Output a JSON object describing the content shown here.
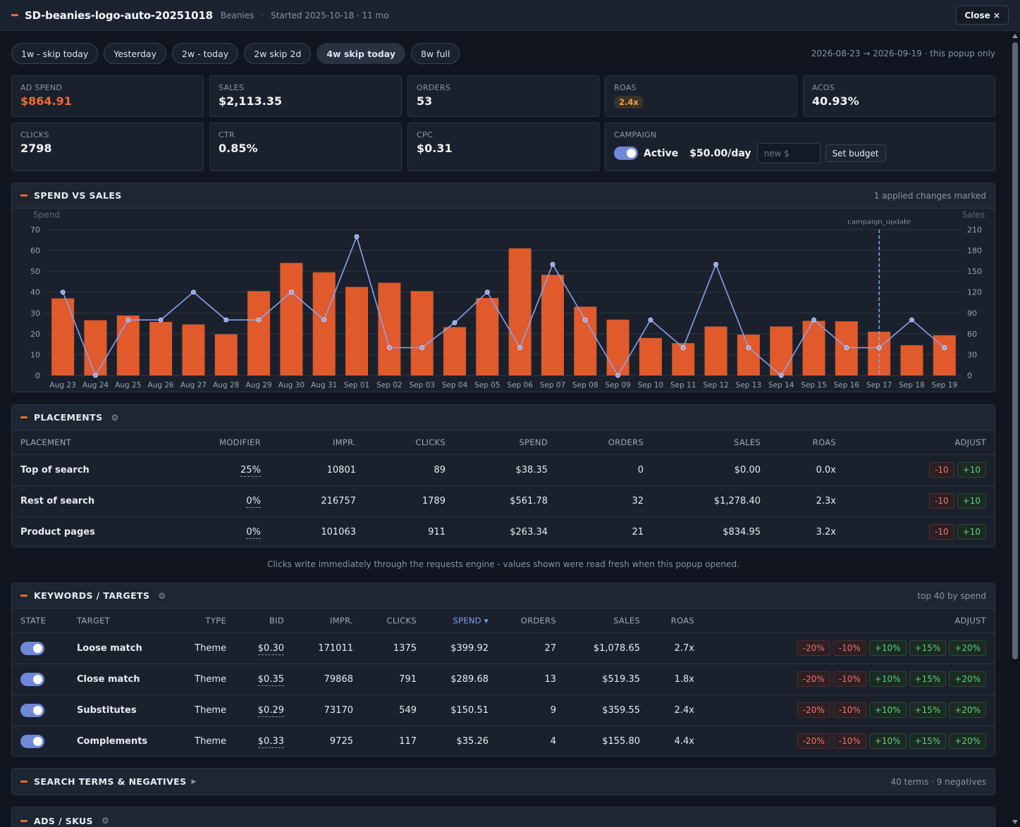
{
  "header": {
    "title": "SD-beanies-logo-auto-20251018",
    "category": "Beanies",
    "started": "Started 2025-10-18 · 11 mo",
    "close_label": "Close ×"
  },
  "ranges": [
    {
      "label": "1w - skip today",
      "active": false
    },
    {
      "label": "Yesterday",
      "active": false
    },
    {
      "label": "2w - today",
      "active": false
    },
    {
      "label": "2w skip 2d",
      "active": false
    },
    {
      "label": "4w skip today",
      "active": true
    },
    {
      "label": "8w full",
      "active": false
    }
  ],
  "date_range": "2026-08-23 → 2026-09-19 · this popup only",
  "metrics": {
    "ad_spend": {
      "label": "AD SPEND",
      "value": "$864.91"
    },
    "sales": {
      "label": "SALES",
      "value": "$2,113.35"
    },
    "orders": {
      "label": "ORDERS",
      "value": "53"
    },
    "roas": {
      "label": "ROAS",
      "value": "2.4x"
    },
    "acos": {
      "label": "ACOS",
      "value": "40.93%"
    },
    "clicks": {
      "label": "CLICKS",
      "value": "2798"
    },
    "ctr": {
      "label": "CTR",
      "value": "0.85%"
    },
    "cpc": {
      "label": "CPC",
      "value": "$0.31"
    }
  },
  "campaign": {
    "label": "CAMPAIGN",
    "status": "Active",
    "budget": "$50.00/day",
    "budget_placeholder": "new $",
    "set_budget_label": "Set budget"
  },
  "chart_panel": {
    "title": "SPEND VS SALES",
    "note": "1 applied changes marked"
  },
  "chart_data": {
    "type": "bar",
    "title": "SPEND VS SALES",
    "categories": [
      "Aug 23",
      "Aug 24",
      "Aug 25",
      "Aug 26",
      "Aug 27",
      "Aug 28",
      "Aug 29",
      "Aug 30",
      "Aug 31",
      "Sep 01",
      "Sep 02",
      "Sep 03",
      "Sep 04",
      "Sep 05",
      "Sep 06",
      "Sep 07",
      "Sep 08",
      "Sep 09",
      "Sep 10",
      "Sep 11",
      "Sep 12",
      "Sep 13",
      "Sep 14",
      "Sep 15",
      "Sep 16",
      "Sep 17",
      "Sep 18",
      "Sep 19"
    ],
    "series": [
      {
        "name": "Spend",
        "type": "bar",
        "axis": "left",
        "color": "#e05a2b",
        "values": [
          37,
          26.5,
          28.8,
          25.7,
          24.5,
          19.8,
          40.5,
          54,
          49.5,
          42.5,
          44.5,
          40.5,
          23.2,
          37.2,
          61,
          48.3,
          33,
          26.8,
          18,
          15.5,
          23.5,
          19.6,
          23.5,
          26.2,
          26,
          21,
          14.5,
          19.3
        ]
      },
      {
        "name": "Sales",
        "type": "line",
        "axis": "right",
        "color": "#8aa1ee",
        "values": [
          120,
          0,
          80,
          80,
          120,
          80,
          80,
          120,
          80,
          200,
          40,
          40,
          76,
          120,
          40,
          160,
          80,
          0,
          80,
          40,
          160,
          40,
          0,
          80,
          40,
          40,
          80,
          40
        ]
      }
    ],
    "ylabel": "Spend",
    "y2label": "Sales",
    "ylim": [
      0,
      70
    ],
    "y2lim": [
      0,
      210
    ],
    "yticks": [
      0,
      10,
      20,
      30,
      40,
      50,
      60,
      70
    ],
    "y2ticks": [
      0,
      30,
      60,
      90,
      120,
      150,
      180,
      210
    ],
    "annotations": [
      {
        "x": "Sep 17",
        "label": "campaign_update"
      }
    ],
    "grid": true
  },
  "placements": {
    "title": "PLACEMENTS",
    "columns": [
      "PLACEMENT",
      "MODIFIER",
      "IMPR.",
      "CLICKS",
      "SPEND",
      "ORDERS",
      "SALES",
      "ROAS",
      "ADJUST"
    ],
    "rows": [
      {
        "placement": "Top of search",
        "modifier": "25%",
        "impr": "10801",
        "clicks": "89",
        "spend": "$38.35",
        "orders": "0",
        "sales": "$0.00",
        "roas": "0.0x"
      },
      {
        "placement": "Rest of search",
        "modifier": "0%",
        "impr": "216757",
        "clicks": "1789",
        "spend": "$561.78",
        "orders": "32",
        "sales": "$1,278.40",
        "roas": "2.3x"
      },
      {
        "placement": "Product pages",
        "modifier": "0%",
        "impr": "101063",
        "clicks": "911",
        "spend": "$263.34",
        "orders": "21",
        "sales": "$834.95",
        "roas": "3.2x"
      }
    ],
    "adjust": [
      "-10",
      "+10"
    ]
  },
  "engine_note": "Clicks write immediately through the requests engine - values shown were read fresh when this popup opened.",
  "keywords": {
    "title": "KEYWORDS / TARGETS",
    "note": "top 40 by spend",
    "columns": [
      "STATE",
      "TARGET",
      "TYPE",
      "BID",
      "IMPR.",
      "CLICKS",
      "SPEND ▾",
      "ORDERS",
      "SALES",
      "ROAS",
      "ADJUST"
    ],
    "rows": [
      {
        "target": "Loose match",
        "type": "Theme",
        "bid": "$0.30",
        "impr": "171011",
        "clicks": "1375",
        "spend": "$399.92",
        "orders": "27",
        "sales": "$1,078.65",
        "roas": "2.7x"
      },
      {
        "target": "Close match",
        "type": "Theme",
        "bid": "$0.35",
        "impr": "79868",
        "clicks": "791",
        "spend": "$289.68",
        "orders": "13",
        "sales": "$519.35",
        "roas": "1.8x"
      },
      {
        "target": "Substitutes",
        "type": "Theme",
        "bid": "$0.29",
        "impr": "73170",
        "clicks": "549",
        "spend": "$150.51",
        "orders": "9",
        "sales": "$359.55",
        "roas": "2.4x"
      },
      {
        "target": "Complements",
        "type": "Theme",
        "bid": "$0.33",
        "impr": "9725",
        "clicks": "117",
        "spend": "$35.26",
        "orders": "4",
        "sales": "$155.80",
        "roas": "4.4x"
      }
    ],
    "adjust": [
      "-20%",
      "-10%",
      "+10%",
      "+15%",
      "+20%"
    ]
  },
  "search_terms": {
    "title": "SEARCH TERMS & NEGATIVES",
    "note": "40 terms · 9 negatives"
  },
  "ads": {
    "title": "ADS / SKUS"
  },
  "colors": {
    "accent": "#f26b2e",
    "bar": "#e05a2b",
    "line": "#8aa1ee",
    "toggle": "#6f88d8",
    "bg": "#101520",
    "panel": "#1a212d"
  }
}
